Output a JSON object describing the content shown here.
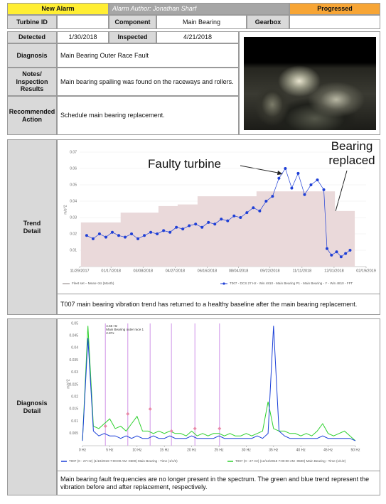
{
  "header": {
    "status_left": "New Alarm",
    "author": "Alarm Author: Jonathan Sharf",
    "status_right": "Progressed"
  },
  "info": {
    "turbine_id_label": "Turbine ID",
    "component_label": "Component",
    "component": "Main Bearing",
    "gearbox_label": "Gearbox",
    "detected_label": "Detected",
    "detected": "1/30/2018",
    "inspected_label": "Inspected",
    "inspected": "4/21/2018",
    "diagnosis_label": "Diagnosis",
    "diagnosis": "Main Bearing Outer Race Fault",
    "notes_label": "Notes/ Inspection Results",
    "notes": "Main bearing spalling was found on the raceways and rollers.",
    "action_label": "Recommended Action",
    "action": "Schedule main bearing replacement."
  },
  "trend_section": {
    "label": "Trend Detail",
    "text": "T007 main bearing vibration trend has returned to a healthy baseline after the main bearing replacement."
  },
  "diagnosis_section": {
    "label": "Diagnosis Detail",
    "text": "Main bearing fault frequencies are no longer present in the spectrum. The green and blue trend represent the vibration before and after replacement, respectively."
  },
  "chart_data": [
    {
      "type": "line",
      "y_label": "m/s^2",
      "annotations": [
        "Faulty turbine",
        "Bearing replaced"
      ],
      "xlim": [
        "2017-11-29",
        "2019-02-19"
      ],
      "xticks": [
        {
          "value": "2017-11-29",
          "label": "11/29/2017"
        },
        {
          "value": "2018-01-17",
          "label": "01/17/2018"
        },
        {
          "value": "2018-03-08",
          "label": "03/08/2018"
        },
        {
          "value": "2018-04-27",
          "label": "04/27/2018"
        },
        {
          "value": "2018-06-16",
          "label": "06/16/2018"
        },
        {
          "value": "2018-08-04",
          "label": "08/04/2018"
        },
        {
          "value": "2018-09-22",
          "label": "09/22/2018"
        },
        {
          "value": "2018-11-11",
          "label": "11/11/2018"
        },
        {
          "value": "2018-12-31",
          "label": "12/31/2018"
        },
        {
          "value": "2019-02-19",
          "label": "02/19/2019"
        }
      ],
      "ylim": [
        0,
        0.07
      ],
      "yticks": [
        0.01,
        0.02,
        0.03,
        0.04,
        0.05,
        0.06,
        0.07
      ],
      "grid": true,
      "series": [
        {
          "name": "Fleet set – Mean+3σ (Month)",
          "type": "area",
          "color": "#ead9da",
          "x": [
            "2017-12-01",
            "2018-01-01",
            "2018-02-01",
            "2018-03-01",
            "2018-04-01",
            "2018-05-01",
            "2018-06-01",
            "2018-07-01",
            "2018-08-01",
            "2018-09-01",
            "2018-10-01",
            "2018-11-01",
            "2018-12-01",
            "2019-01-01"
          ],
          "values": [
            0.027,
            0.027,
            0.033,
            0.033,
            0.037,
            0.038,
            0.043,
            0.043,
            0.043,
            0.046,
            0.046,
            0.046,
            0.046,
            0.034
          ]
        },
        {
          "name": "T007 - DCS 27 Hz - Win 4810 - Main Bearing P1 - Main Bearing - Y - Win 4810 - FFT",
          "type": "line",
          "color": "#1f3fd6",
          "x": [
            "2017-12-10",
            "2017-12-20",
            "2017-12-30",
            "2018-01-09",
            "2018-01-19",
            "2018-01-29",
            "2018-02-08",
            "2018-02-18",
            "2018-02-28",
            "2018-03-10",
            "2018-03-20",
            "2018-03-30",
            "2018-04-09",
            "2018-04-19",
            "2018-04-29",
            "2018-05-09",
            "2018-05-19",
            "2018-05-29",
            "2018-06-08",
            "2018-06-18",
            "2018-06-28",
            "2018-07-08",
            "2018-07-18",
            "2018-07-28",
            "2018-08-07",
            "2018-08-17",
            "2018-08-27",
            "2018-09-06",
            "2018-09-16",
            "2018-09-26",
            "2018-10-06",
            "2018-10-16",
            "2018-10-26",
            "2018-11-05",
            "2018-11-15",
            "2018-11-25",
            "2018-12-05",
            "2018-12-15",
            "2018-12-20",
            "2018-12-27",
            "2019-01-04",
            "2019-01-11",
            "2019-01-18",
            "2019-01-25"
          ],
          "values": [
            0.019,
            0.017,
            0.02,
            0.018,
            0.021,
            0.019,
            0.018,
            0.02,
            0.017,
            0.019,
            0.021,
            0.02,
            0.022,
            0.021,
            0.024,
            0.023,
            0.025,
            0.026,
            0.024,
            0.027,
            0.026,
            0.029,
            0.028,
            0.031,
            0.03,
            0.033,
            0.036,
            0.034,
            0.04,
            0.043,
            0.054,
            0.06,
            0.048,
            0.057,
            0.044,
            0.05,
            0.053,
            0.047,
            0.011,
            0.007,
            0.009,
            0.006,
            0.008,
            0.01
          ]
        }
      ]
    },
    {
      "type": "line",
      "y_label": "m/s^2",
      "annotation_lines": [
        "4.55 Hz",
        "Main Bearing outer race 1",
        "2.87x"
      ],
      "xlim": [
        0,
        50
      ],
      "xticks": [
        {
          "value": 0,
          "label": "0 Hz"
        },
        {
          "value": 5,
          "label": "5 Hz"
        },
        {
          "value": 10,
          "label": "10 Hz"
        },
        {
          "value": 15,
          "label": "15 Hz"
        },
        {
          "value": 20,
          "label": "20 Hz"
        },
        {
          "value": 25,
          "label": "25 Hz"
        },
        {
          "value": 30,
          "label": "30 Hz"
        },
        {
          "value": 35,
          "label": "35 Hz"
        },
        {
          "value": 40,
          "label": "40 Hz"
        },
        {
          "value": 45,
          "label": "45 Hz"
        },
        {
          "value": 50,
          "label": "50 Hz"
        }
      ],
      "ylim": [
        0,
        0.05
      ],
      "yticks": [
        0.005,
        0.01,
        0.015,
        0.02,
        0.025,
        0.03,
        0.035,
        0.04,
        0.045,
        0.05
      ],
      "grid": false,
      "x": [
        0,
        1,
        2,
        3,
        4,
        5,
        6,
        7,
        8,
        9,
        10,
        11,
        12,
        13,
        14,
        15,
        16,
        17,
        18,
        19,
        20,
        21,
        22,
        23,
        24,
        25,
        26,
        27,
        28,
        29,
        30,
        31,
        32,
        33,
        34,
        35,
        36,
        37,
        38,
        39,
        40,
        41,
        42,
        43,
        44,
        45,
        46,
        47,
        48,
        49,
        50
      ],
      "series": [
        {
          "name": "T007 (0 - 27 Hz) (12/12/2018 7:00:00 AM -0500) Main Bearing - Time (1/1/2)",
          "color": "#2ed12e",
          "values": [
            0.002,
            0.049,
            0.008,
            0.007,
            0.009,
            0.011,
            0.007,
            0.008,
            0.006,
            0.009,
            0.012,
            0.006,
            0.006,
            0.005,
            0.006,
            0.005,
            0.006,
            0.005,
            0.005,
            0.004,
            0.006,
            0.004,
            0.005,
            0.004,
            0.005,
            0.005,
            0.004,
            0.005,
            0.004,
            0.004,
            0.005,
            0.004,
            0.005,
            0.006,
            0.018,
            0.007,
            0.006,
            0.006,
            0.005,
            0.005,
            0.004,
            0.005,
            0.004,
            0.006,
            0.009,
            0.005,
            0.004,
            0.005,
            0.006,
            0.004,
            0.002
          ]
        },
        {
          "name": "T007 (0 - 27 Hz) (1/10/2019 7:00:00 AM -0500) Main Bearing - Time (1/1/2)",
          "color": "#1a3fd8",
          "values": [
            0.002,
            0.044,
            0.006,
            0.004,
            0.005,
            0.004,
            0.004,
            0.003,
            0.004,
            0.003,
            0.004,
            0.003,
            0.003,
            0.004,
            0.003,
            0.003,
            0.004,
            0.003,
            0.003,
            0.003,
            0.004,
            0.003,
            0.003,
            0.003,
            0.003,
            0.004,
            0.003,
            0.003,
            0.003,
            0.003,
            0.003,
            0.003,
            0.004,
            0.003,
            0.005,
            0.049,
            0.006,
            0.004,
            0.003,
            0.003,
            0.003,
            0.003,
            0.003,
            0.003,
            0.004,
            0.003,
            0.003,
            0.003,
            0.003,
            0.003,
            0.002
          ]
        }
      ],
      "fault_markers": {
        "color": "#d8a6ec",
        "marker_color": "#e88aa8",
        "x": [
          4.2,
          8.3,
          12.4,
          16.3,
          20.6,
          25.1
        ],
        "values": [
          0.008,
          0.013,
          0.015,
          0.006,
          0.007,
          0.007
        ]
      }
    }
  ]
}
